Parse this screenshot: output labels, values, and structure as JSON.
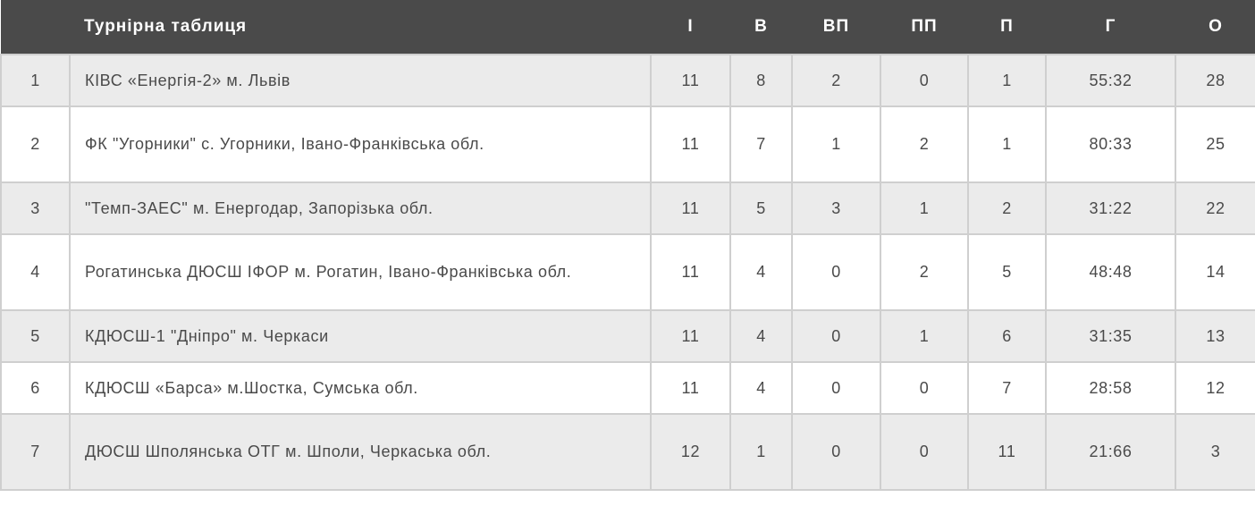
{
  "table": {
    "title": "Турнірна таблиця",
    "columns": [
      "І",
      "В",
      "ВП",
      "ПП",
      "П",
      "Г",
      "О"
    ],
    "rows": [
      {
        "pos": "1",
        "team": "КІВС «Енергія-2» м. Львів",
        "games": "11",
        "wins": "8",
        "ot_wins": "2",
        "ot_losses": "0",
        "losses": "1",
        "goals": "55:32",
        "points": "28"
      },
      {
        "pos": "2",
        "team": "ФК \"Угорники\" с. Угорники, Івано-Франківська обл.",
        "games": "11",
        "wins": "7",
        "ot_wins": "1",
        "ot_losses": "2",
        "losses": "1",
        "goals": "80:33",
        "points": "25"
      },
      {
        "pos": "3",
        "team": "\"Темп-ЗАЕС\" м. Енергодар, Запорізька обл.",
        "games": "11",
        "wins": "5",
        "ot_wins": "3",
        "ot_losses": "1",
        "losses": "2",
        "goals": "31:22",
        "points": "22"
      },
      {
        "pos": "4",
        "team": "Рогатинська ДЮСШ ІФОР м. Рогатин, Івано-Франківська обл.",
        "games": "11",
        "wins": "4",
        "ot_wins": "0",
        "ot_losses": "2",
        "losses": "5",
        "goals": "48:48",
        "points": "14"
      },
      {
        "pos": "5",
        "team": "КДЮСШ-1 \"Дніпро\" м. Черкаси",
        "games": "11",
        "wins": "4",
        "ot_wins": "0",
        "ot_losses": "1",
        "losses": "6",
        "goals": "31:35",
        "points": "13"
      },
      {
        "pos": "6",
        "team": "КДЮСШ «Барса» м.Шостка, Сумська обл.",
        "games": "11",
        "wins": "4",
        "ot_wins": "0",
        "ot_losses": "0",
        "losses": "7",
        "goals": "28:58",
        "points": "12"
      },
      {
        "pos": "7",
        "team": "ДЮСШ Шполянська ОТГ м. Шполи, Черкаська обл.",
        "games": "12",
        "wins": "1",
        "ot_wins": "0",
        "ot_losses": "0",
        "losses": "11",
        "goals": "21:66",
        "points": "3"
      }
    ]
  },
  "colors": {
    "header_bg": "#4a4a4a",
    "row_alt_bg": "#ebebeb",
    "border": "#cfcfcf",
    "text": "#4a4a4a"
  }
}
